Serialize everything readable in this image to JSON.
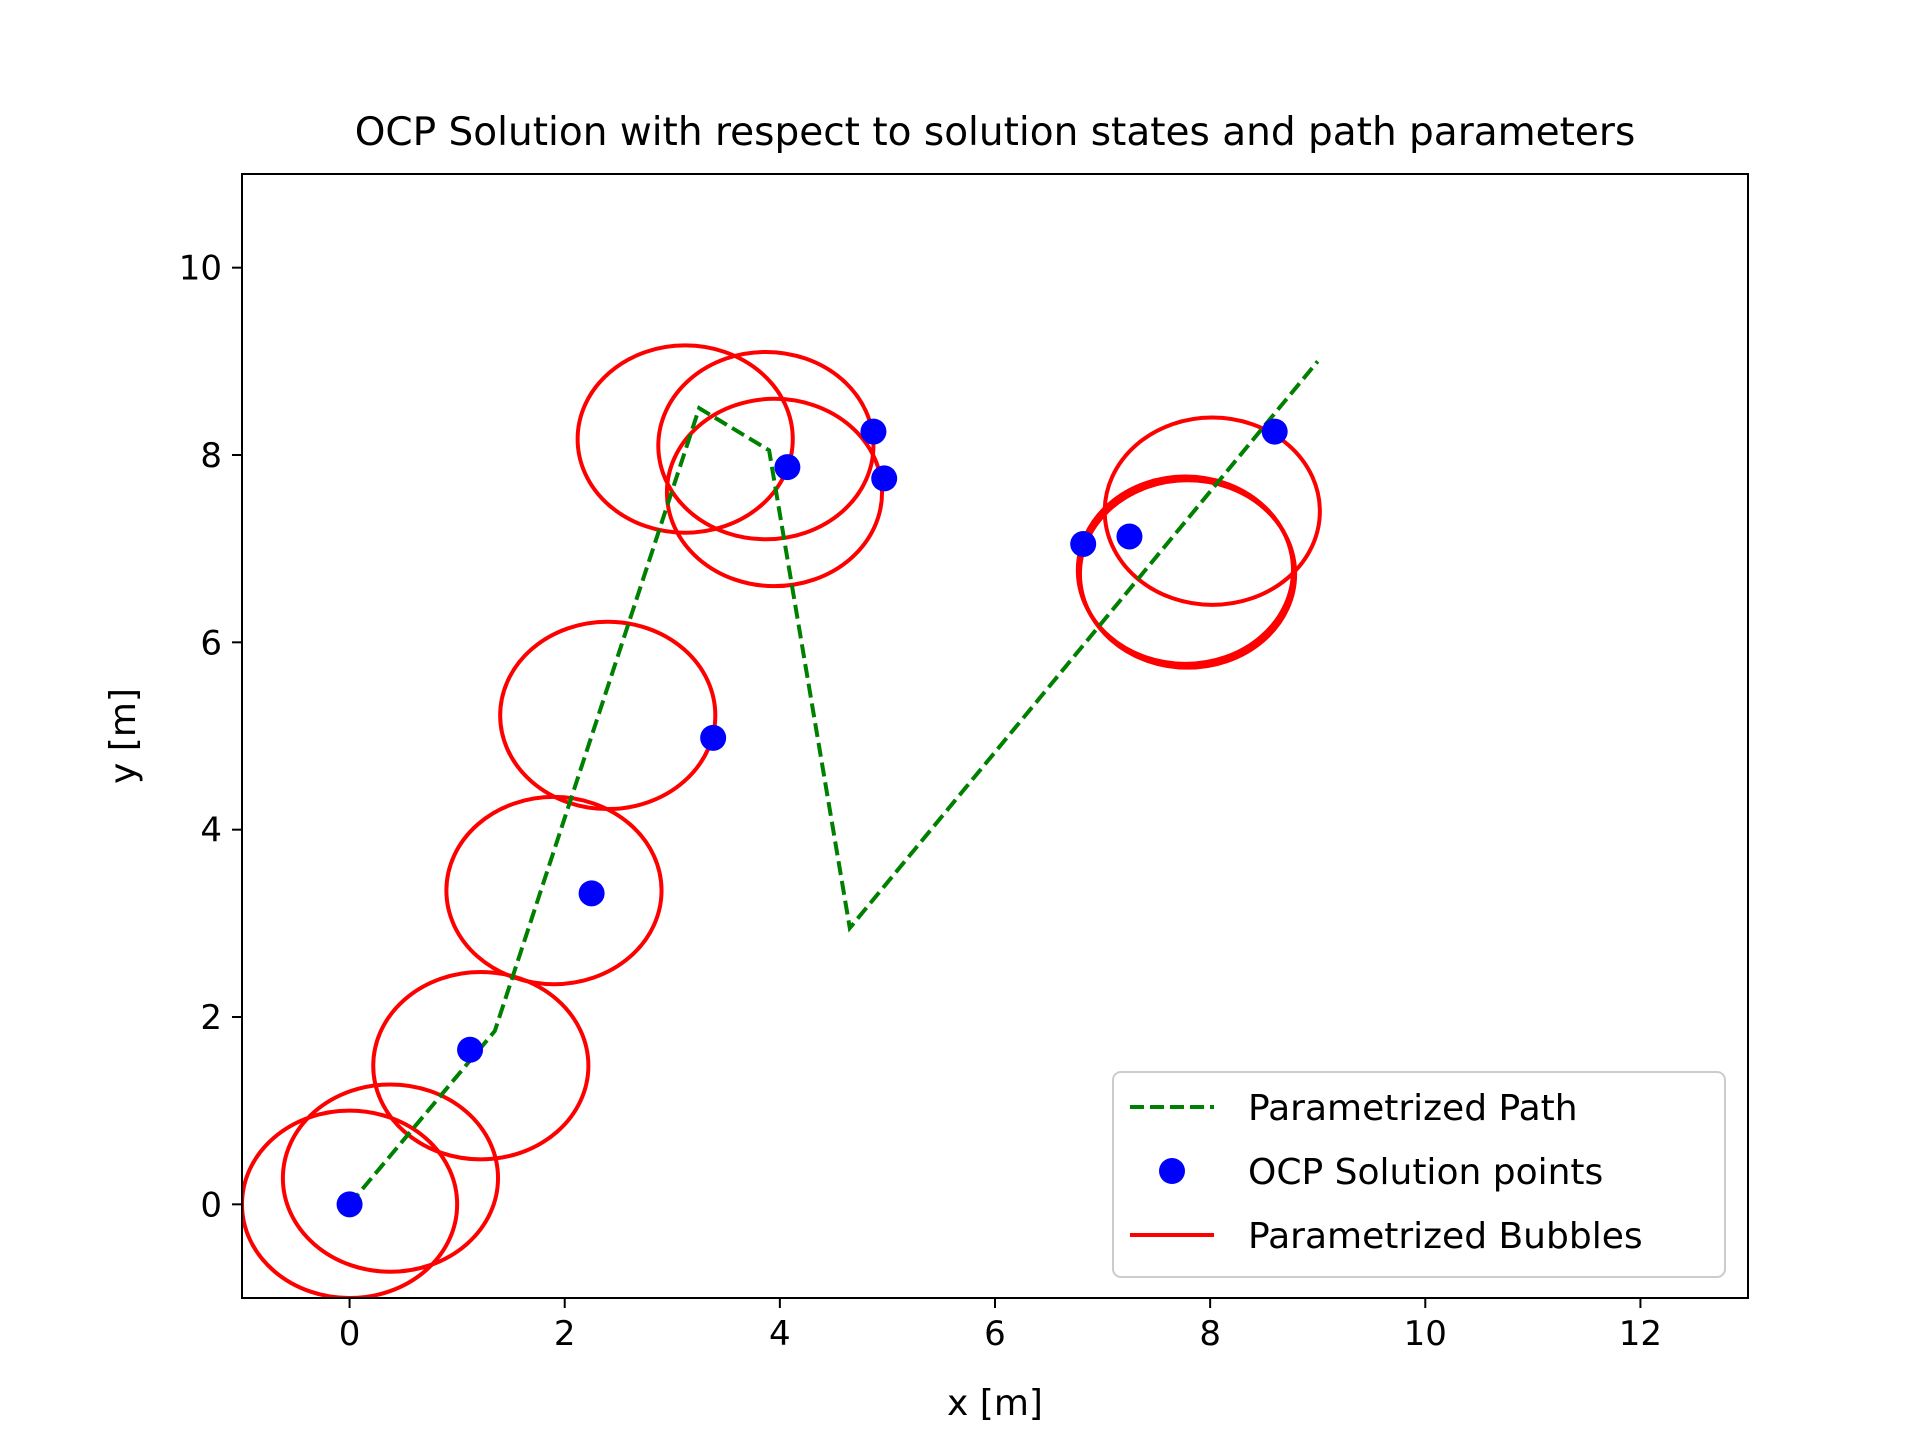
{
  "chart_data": {
    "type": "scatter",
    "title": "OCP Solution with respect to solution states and path parameters",
    "xlabel": "x [m]",
    "ylabel": "y [m]",
    "xlim": [
      -1.0,
      13.0
    ],
    "ylim": [
      -1.0,
      11.0
    ],
    "xticks": [
      0,
      2,
      4,
      6,
      8,
      10,
      12
    ],
    "yticks": [
      0,
      2,
      4,
      6,
      8,
      10
    ],
    "grid": false,
    "legend_position": "lower-right",
    "series": [
      {
        "name": "Parametrized Path",
        "kind": "line",
        "style": "dashed",
        "color": "#008000",
        "x": [
          0.0,
          1.35,
          3.25,
          3.9,
          4.65,
          9.0
        ],
        "y": [
          0.0,
          1.85,
          8.5,
          8.05,
          2.95,
          9.0
        ]
      },
      {
        "name": "OCP Solution points",
        "kind": "scatter",
        "color": "#0000ff",
        "x": [
          0.0,
          1.12,
          2.25,
          3.38,
          4.07,
          4.87,
          4.97,
          6.82,
          7.25,
          8.6
        ],
        "y": [
          0.0,
          1.65,
          3.32,
          4.98,
          7.87,
          8.25,
          7.75,
          7.05,
          7.13,
          8.25
        ]
      },
      {
        "name": "Parametrized Bubbles",
        "kind": "ellipse",
        "color": "#ff0000",
        "circles": [
          {
            "cx": 0.0,
            "cy": 0.0,
            "r": 1.0
          },
          {
            "cx": 0.38,
            "cy": 0.28,
            "r": 1.0
          },
          {
            "cx": 1.22,
            "cy": 1.48,
            "r": 1.0
          },
          {
            "cx": 1.9,
            "cy": 3.35,
            "r": 1.0
          },
          {
            "cx": 2.4,
            "cy": 5.22,
            "r": 1.0
          },
          {
            "cx": 3.12,
            "cy": 8.17,
            "r": 1.0
          },
          {
            "cx": 3.87,
            "cy": 8.1,
            "r": 1.0
          },
          {
            "cx": 3.95,
            "cy": 7.6,
            "r": 1.0
          },
          {
            "cx": 7.77,
            "cy": 6.77,
            "r": 1.0
          },
          {
            "cx": 7.78,
            "cy": 6.75,
            "r": 1.0
          },
          {
            "cx": 7.79,
            "cy": 6.73,
            "r": 1.0
          },
          {
            "cx": 8.02,
            "cy": 7.4,
            "r": 1.0
          }
        ]
      }
    ]
  }
}
